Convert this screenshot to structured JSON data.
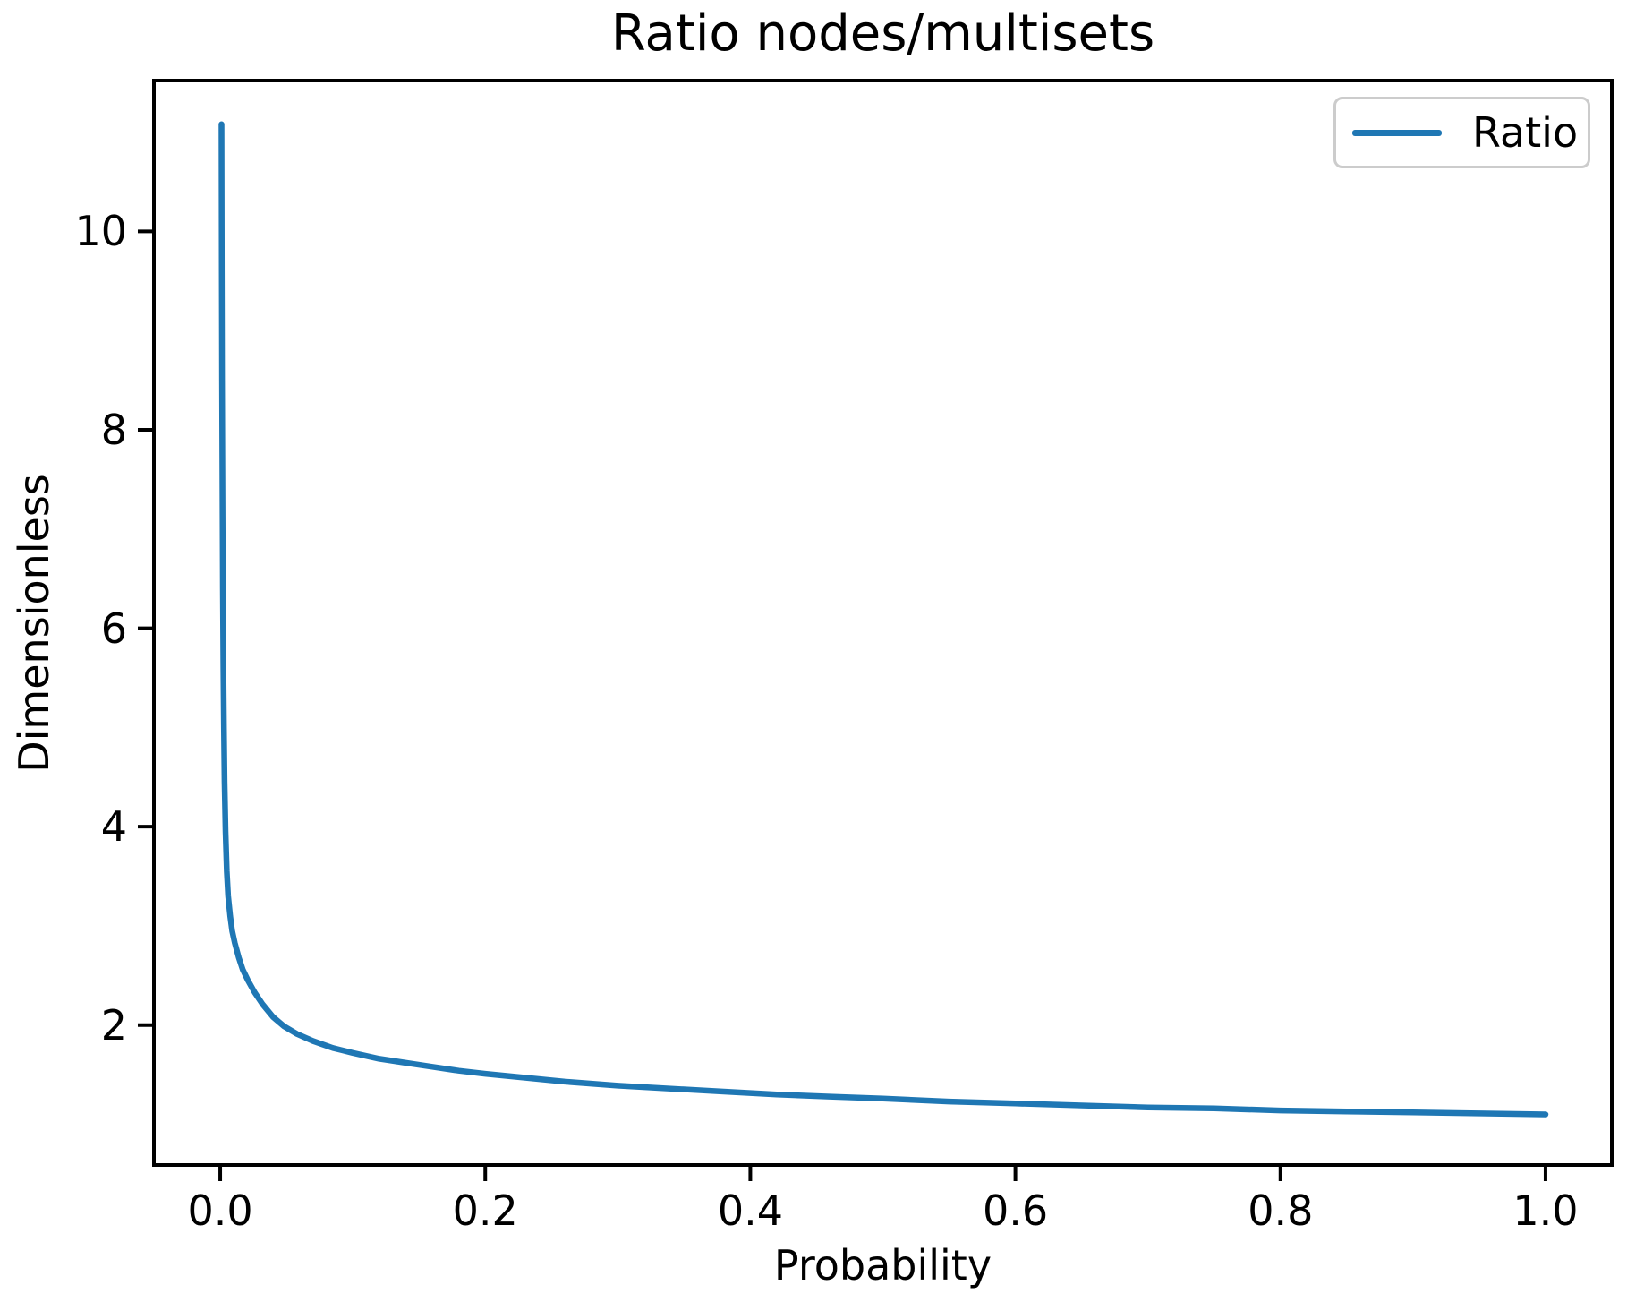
{
  "chart_data": {
    "type": "line",
    "title": "Ratio nodes/multisets",
    "xlabel": "Probability",
    "ylabel": "Dimensionless",
    "grid": false,
    "background": "#ffffff",
    "axis_color": "#000000",
    "xlim": [
      -0.05,
      1.05
    ],
    "ylim": [
      0.59,
      11.52
    ],
    "xticks": {
      "values": [
        0.0,
        0.2,
        0.4,
        0.6,
        0.8,
        1.0
      ],
      "labels": [
        "0.0",
        "0.2",
        "0.4",
        "0.6",
        "0.8",
        "1.0"
      ]
    },
    "yticks": {
      "values": [
        2,
        4,
        6,
        8,
        10
      ],
      "labels": [
        "2",
        "4",
        "6",
        "8",
        "10"
      ]
    },
    "legend": {
      "position": "upper right",
      "border_color": "#cccccc",
      "entries": [
        {
          "label": "Ratio",
          "color": "#1f77b4"
        }
      ]
    },
    "series": [
      {
        "name": "Ratio",
        "color": "#1f77b4",
        "line_width": 6.5,
        "x": [
          0.001,
          0.0012,
          0.0014,
          0.0017,
          0.002,
          0.0024,
          0.0028,
          0.0033,
          0.004,
          0.005,
          0.006,
          0.0075,
          0.009,
          0.011,
          0.014,
          0.017,
          0.021,
          0.026,
          0.032,
          0.04,
          0.048,
          0.058,
          0.07,
          0.085,
          0.1,
          0.12,
          0.14,
          0.16,
          0.18,
          0.2,
          0.23,
          0.26,
          0.3,
          0.34,
          0.38,
          0.42,
          0.46,
          0.5,
          0.55,
          0.6,
          0.65,
          0.7,
          0.75,
          0.8,
          0.85,
          0.9,
          0.95,
          1.0
        ],
        "y": [
          11.08,
          9.6,
          8.5,
          7.3,
          6.4,
          5.6,
          5.0,
          4.45,
          3.95,
          3.55,
          3.3,
          3.1,
          2.95,
          2.83,
          2.68,
          2.56,
          2.45,
          2.33,
          2.21,
          2.08,
          1.99,
          1.91,
          1.84,
          1.77,
          1.72,
          1.66,
          1.62,
          1.58,
          1.54,
          1.51,
          1.47,
          1.43,
          1.39,
          1.36,
          1.33,
          1.3,
          1.28,
          1.26,
          1.23,
          1.21,
          1.19,
          1.17,
          1.16,
          1.14,
          1.13,
          1.12,
          1.11,
          1.1
        ]
      }
    ]
  }
}
